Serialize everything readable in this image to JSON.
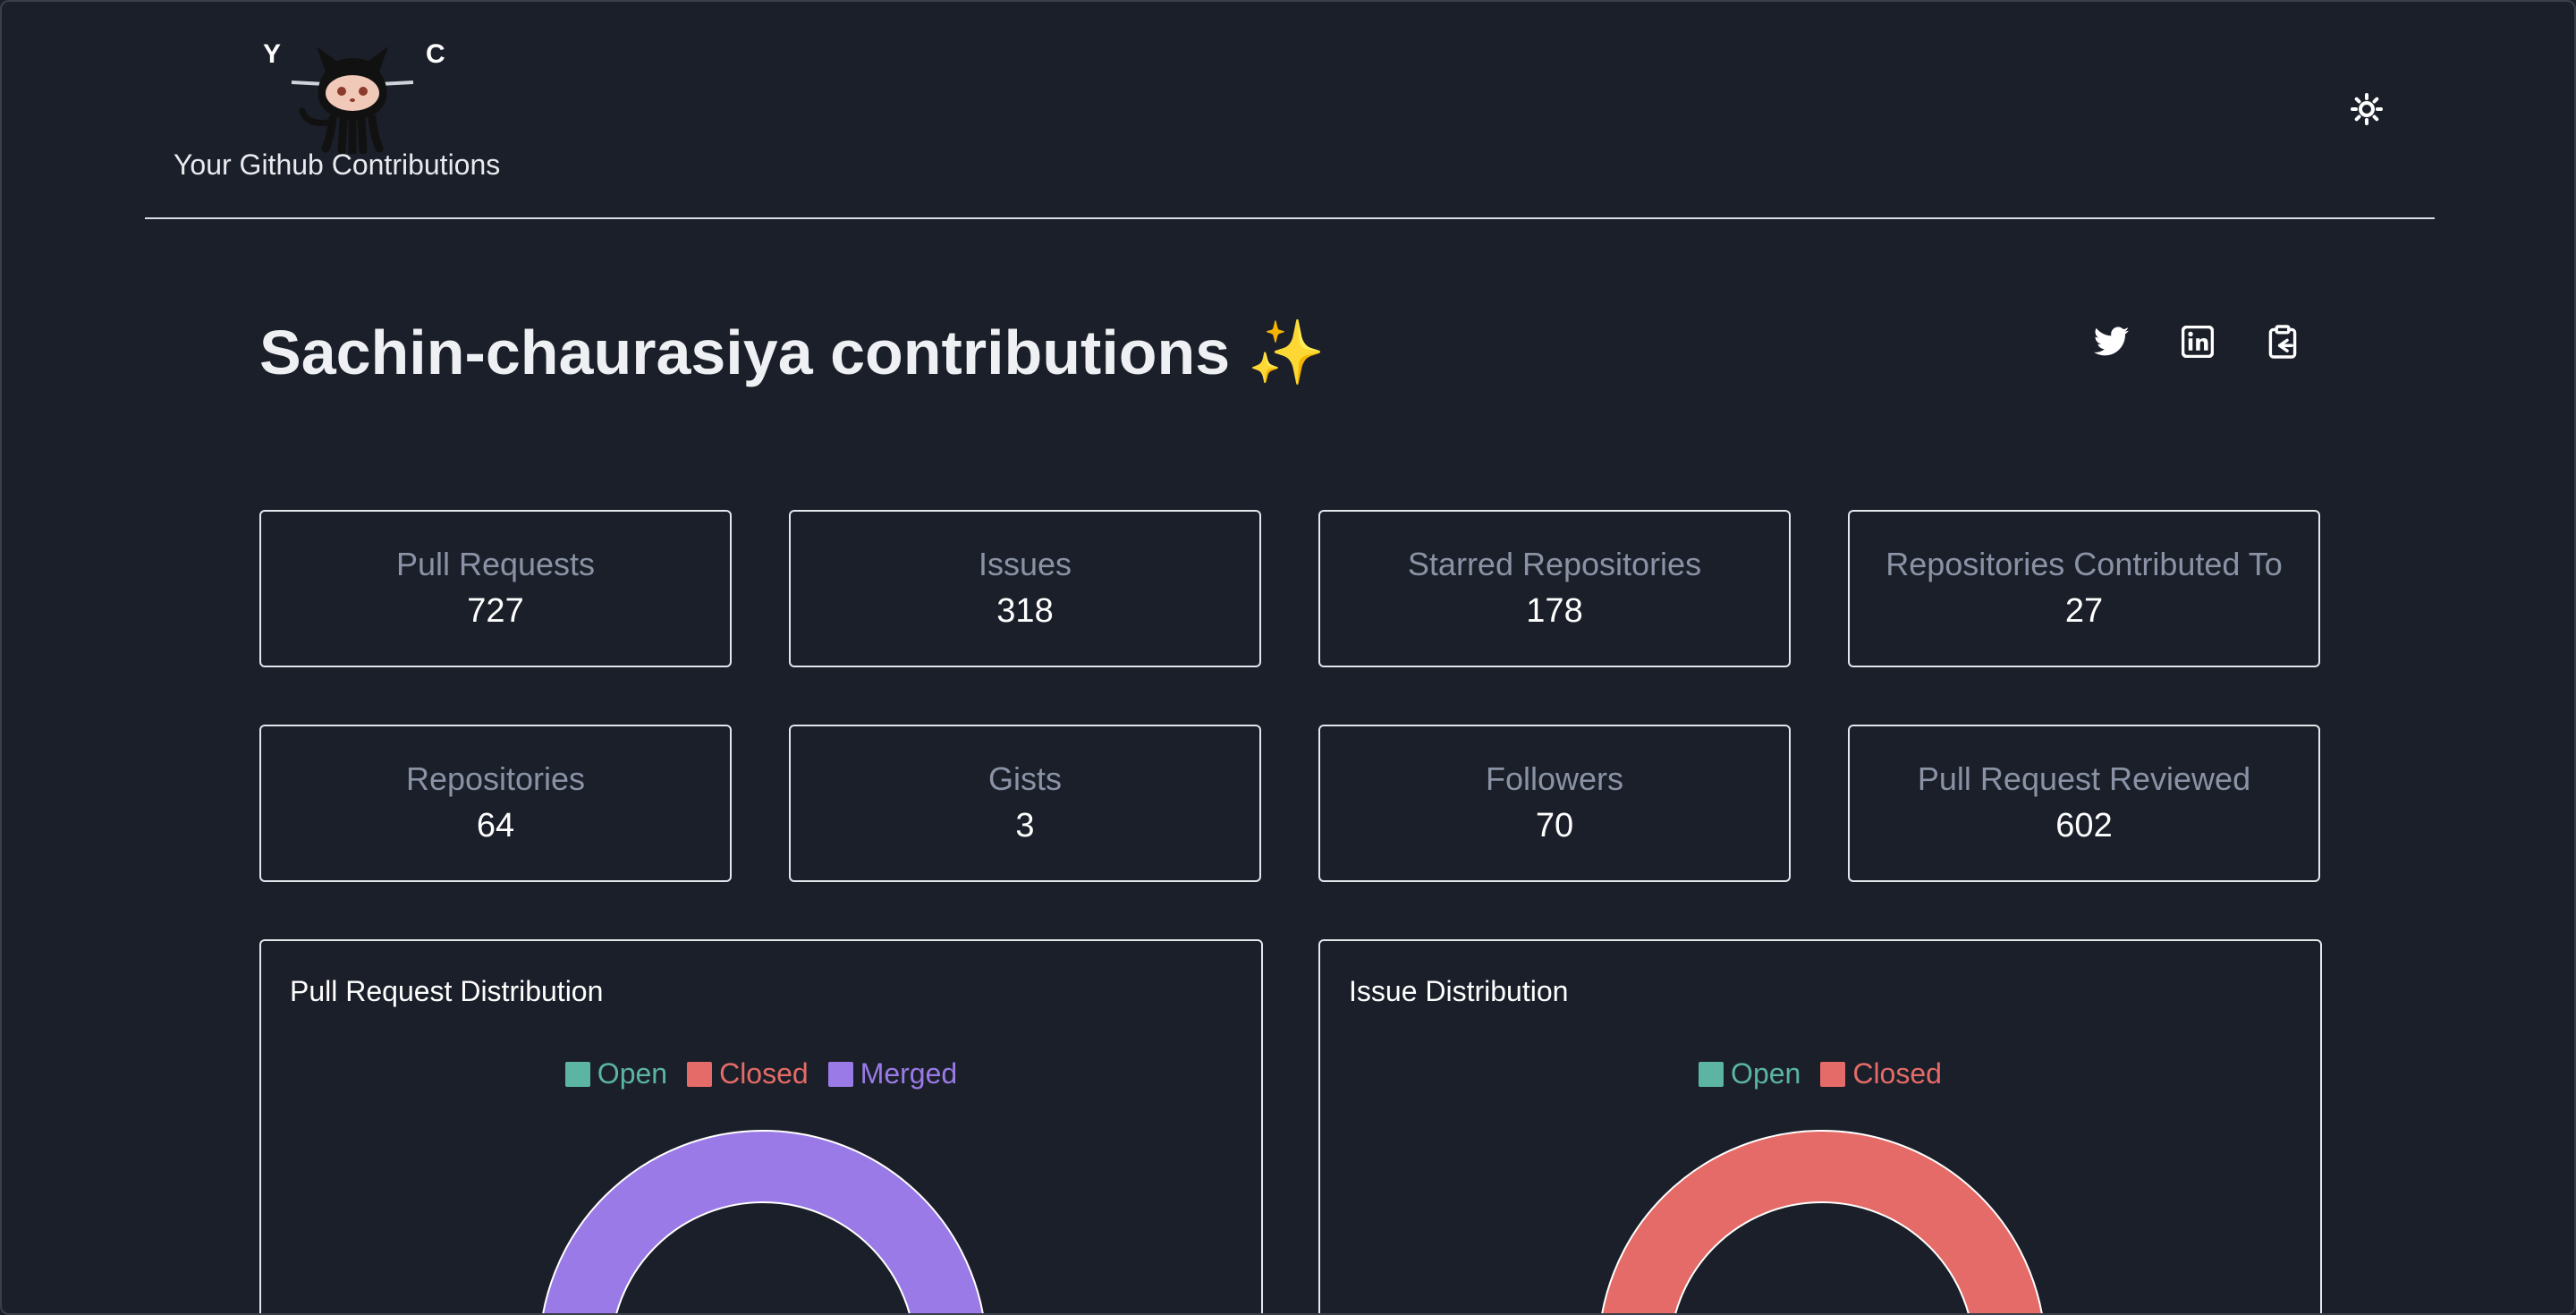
{
  "header": {
    "logo_left": "Y",
    "logo_right": "C",
    "tagline": "Your Github Contributions"
  },
  "title": "Sachin-chaurasiya contributions ✨",
  "share": {
    "twitter_icon": "twitter-icon",
    "linkedin_icon": "linkedin-icon",
    "copy_icon": "clipboard-icon"
  },
  "stats": [
    {
      "label": "Pull Requests",
      "value": "727"
    },
    {
      "label": "Issues",
      "value": "318"
    },
    {
      "label": "Starred Repositories",
      "value": "178"
    },
    {
      "label": "Repositories Contributed To",
      "value": "27"
    },
    {
      "label": "Repositories",
      "value": "64"
    },
    {
      "label": "Gists",
      "value": "3"
    },
    {
      "label": "Followers",
      "value": "70"
    },
    {
      "label": "Pull Request Reviewed",
      "value": "602"
    }
  ],
  "colors": {
    "open": "#5bb5a2",
    "closed": "#e46b67",
    "merged": "#9a7ae6"
  },
  "chart_data": [
    {
      "type": "pie",
      "title": "Pull Request Distribution",
      "legend": [
        "Open",
        "Closed",
        "Merged"
      ]
    },
    {
      "type": "pie",
      "title": "Issue Distribution",
      "legend": [
        "Open",
        "Closed"
      ]
    }
  ]
}
